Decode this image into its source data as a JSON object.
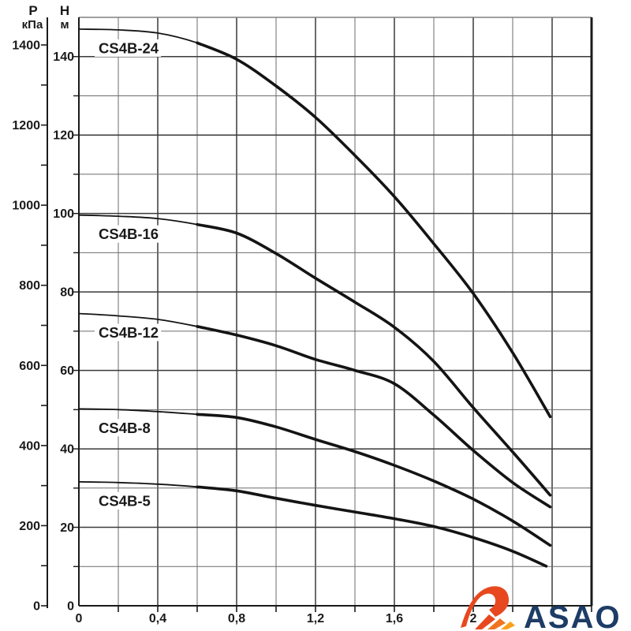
{
  "page": {
    "background": "#ffffff"
  },
  "chart_data": {
    "type": "line",
    "title": "",
    "description": "Pump performance curves, head H (м) / pressure P (кПа) versus flow",
    "grid": true,
    "legend": "inline-curve-labels",
    "x": {
      "min": 0,
      "max": 2.6,
      "grid_step": 0.2,
      "ticks": [
        {
          "value": 0,
          "label": "0"
        },
        {
          "value": 0.4,
          "label": "0,4"
        },
        {
          "value": 0.8,
          "label": "0,8"
        },
        {
          "value": 1.2,
          "label": "1,2"
        },
        {
          "value": 1.6,
          "label": "1,6"
        },
        {
          "value": 2,
          "label": "2"
        }
      ]
    },
    "y_head": {
      "symbol": "H",
      "unit": "м",
      "min": 0,
      "max": 150,
      "label_step": 20,
      "grid_step": 10,
      "max_label": 140
    },
    "y_pressure": {
      "symbol": "P",
      "unit": "кПа",
      "min": 0,
      "max": 1400,
      "label_step": 200,
      "tick_step": 100
    },
    "series": [
      {
        "name": "CS4B-24",
        "points": [
          [
            0,
            147
          ],
          [
            0.2,
            146.8
          ],
          [
            0.4,
            146
          ],
          [
            0.6,
            143.5
          ],
          [
            0.8,
            139.3
          ],
          [
            1.0,
            132.5
          ],
          [
            1.2,
            124.5
          ],
          [
            1.4,
            114.8
          ],
          [
            1.6,
            104.3
          ],
          [
            1.8,
            92.3
          ],
          [
            2.0,
            79.6
          ],
          [
            2.2,
            64.5
          ],
          [
            2.39,
            48.2
          ]
        ]
      },
      {
        "name": "CS4B-16",
        "points": [
          [
            0,
            99.6
          ],
          [
            0.2,
            99.3
          ],
          [
            0.4,
            98.7
          ],
          [
            0.6,
            97.2
          ],
          [
            0.8,
            95
          ],
          [
            1.0,
            89.8
          ],
          [
            1.2,
            83.5
          ],
          [
            1.4,
            77.4
          ],
          [
            1.6,
            71
          ],
          [
            1.8,
            62.3
          ],
          [
            2.0,
            50.5
          ],
          [
            2.2,
            39.2
          ],
          [
            2.39,
            28.2
          ]
        ]
      },
      {
        "name": "CS4B-12",
        "points": [
          [
            0,
            74.5
          ],
          [
            0.2,
            73.9
          ],
          [
            0.4,
            73
          ],
          [
            0.6,
            71.2
          ],
          [
            0.8,
            69
          ],
          [
            1.0,
            66.3
          ],
          [
            1.2,
            62.8
          ],
          [
            1.4,
            60
          ],
          [
            1.6,
            56.6
          ],
          [
            1.8,
            48.6
          ],
          [
            2.0,
            39.6
          ],
          [
            2.2,
            31.4
          ],
          [
            2.39,
            25.2
          ]
        ]
      },
      {
        "name": "CS4B-8",
        "points": [
          [
            0,
            50.2
          ],
          [
            0.2,
            50
          ],
          [
            0.4,
            49.5
          ],
          [
            0.6,
            48.8
          ],
          [
            0.8,
            48
          ],
          [
            1.0,
            45.6
          ],
          [
            1.2,
            42.4
          ],
          [
            1.4,
            39.3
          ],
          [
            1.6,
            35.8
          ],
          [
            1.8,
            31.8
          ],
          [
            2.0,
            27.2
          ],
          [
            2.2,
            21.6
          ],
          [
            2.39,
            15.4
          ]
        ]
      },
      {
        "name": "CS4B-5",
        "points": [
          [
            0,
            31.6
          ],
          [
            0.2,
            31.4
          ],
          [
            0.4,
            31
          ],
          [
            0.6,
            30.3
          ],
          [
            0.8,
            29.3
          ],
          [
            1.0,
            27.4
          ],
          [
            1.2,
            25.6
          ],
          [
            1.4,
            23.9
          ],
          [
            1.6,
            22.2
          ],
          [
            1.8,
            20.2
          ],
          [
            2.0,
            17.4
          ],
          [
            2.2,
            13.9
          ],
          [
            2.37,
            10.1
          ]
        ]
      }
    ],
    "colors": {
      "curve": "#141414",
      "grid_major": "#3a3a3a",
      "grid_minor": "#6b6b6b",
      "border_dark": "#1a1a1a",
      "border_top": "#808080",
      "text": "#1a1a1a"
    }
  },
  "logo": {
    "text": "ASAO",
    "text_color": "#1d3c66",
    "swoosh_color": "#e8481f",
    "stripe_colors": [
      "#e8481f",
      "#f07420",
      "#f9a11b"
    ]
  }
}
